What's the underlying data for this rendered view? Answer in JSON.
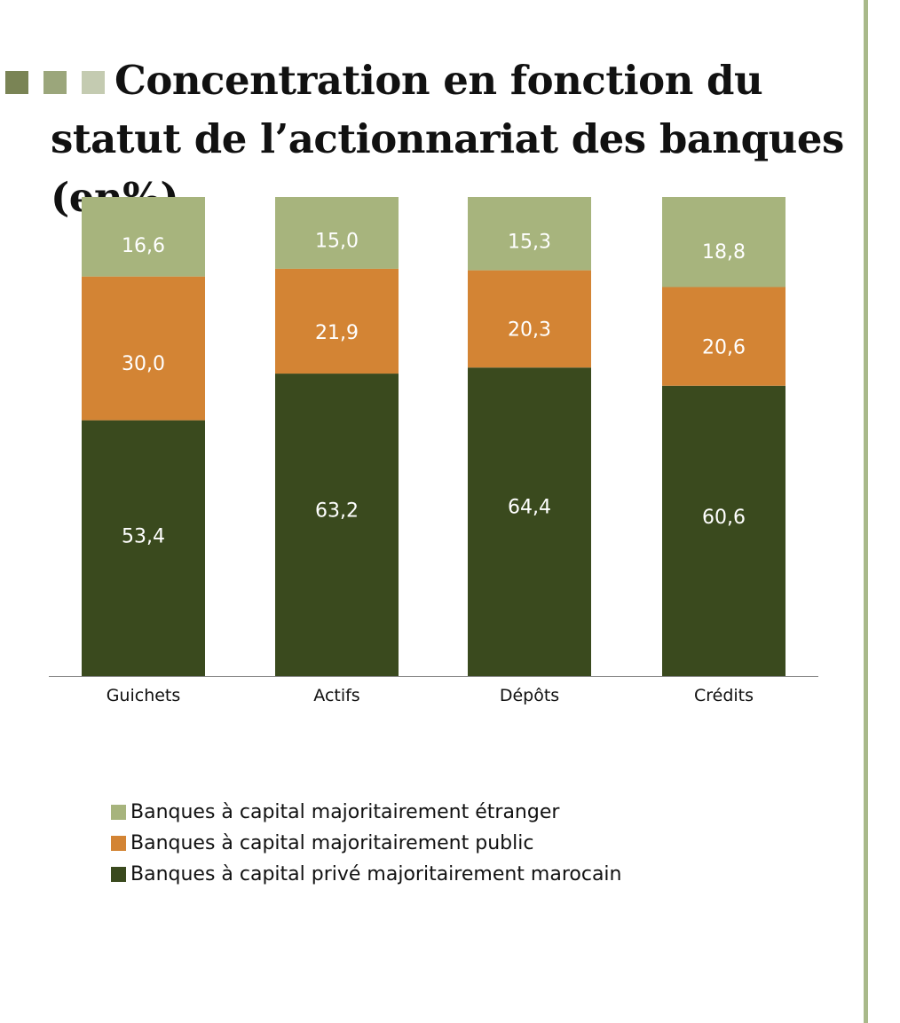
{
  "title": "Concentration en fonction du statut de l’actionnariat des banques (en%)",
  "title_squares": [
    "#7a8455",
    "#9ba67b",
    "#c4cbb1"
  ],
  "chart_data": {
    "type": "bar",
    "stacked": true,
    "title": "Concentration en fonction du statut de l’actionnariat des banques (en%)",
    "categories": [
      "Guichets",
      "Actifs",
      "Dépôts",
      "Crédits"
    ],
    "series": [
      {
        "name": "Banques à capital privé majoritairement marocain",
        "color": "#3a4a1e",
        "values": [
          53.4,
          63.2,
          64.4,
          60.6
        ],
        "labels": [
          "53,4",
          "63,2",
          "64,4",
          "60,6"
        ]
      },
      {
        "name": "Banques à capital majoritairement public",
        "color": "#d38434",
        "values": [
          30.0,
          21.9,
          20.3,
          20.6
        ],
        "labels": [
          "30,0",
          "21,9",
          "20,3",
          "20,6"
        ]
      },
      {
        "name": "Banques à capital majoritairement étranger",
        "color": "#a7b47d",
        "values": [
          16.6,
          15.0,
          15.3,
          18.8
        ],
        "labels": [
          "16,6",
          "15,0",
          "15,3",
          "18,8"
        ]
      }
    ],
    "ylim": [
      0,
      100
    ],
    "grid": false,
    "legend_placement": "bottom",
    "legend_order": [
      2,
      1,
      0
    ]
  }
}
